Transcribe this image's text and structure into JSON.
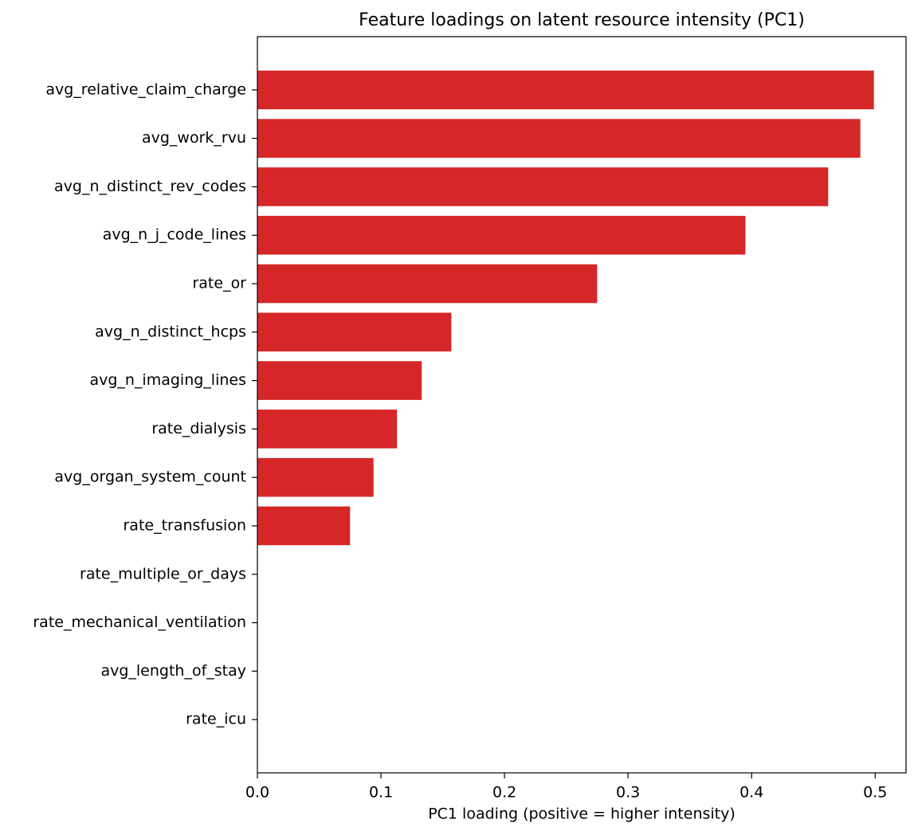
{
  "chart_data": {
    "type": "barh",
    "title": "Feature loadings on latent resource intensity (PC1)",
    "x_label": "PC1 loading (positive = higher intensity)",
    "categories": [
      "avg_relative_claim_charge",
      "avg_work_rvu",
      "avg_n_distinct_rev_codes",
      "avg_n_j_code_lines",
      "rate_or",
      "avg_n_distinct_hcps",
      "avg_n_imaging_lines",
      "rate_dialysis",
      "avg_organ_system_count",
      "rate_transfusion",
      "rate_multiple_or_days",
      "rate_mechanical_ventilation",
      "avg_length_of_stay",
      "rate_icu"
    ],
    "values": [
      0.499,
      0.488,
      0.462,
      0.395,
      0.275,
      0.157,
      0.133,
      0.113,
      0.094,
      0.075,
      0,
      0,
      0,
      0
    ],
    "color": "#d62728",
    "xlim": [
      0,
      0.525
    ],
    "xticks": [
      {
        "value": 0,
        "label": "0.0"
      },
      0.1,
      0.2,
      0.3,
      0.4,
      0.5
    ],
    "grid": false
  }
}
